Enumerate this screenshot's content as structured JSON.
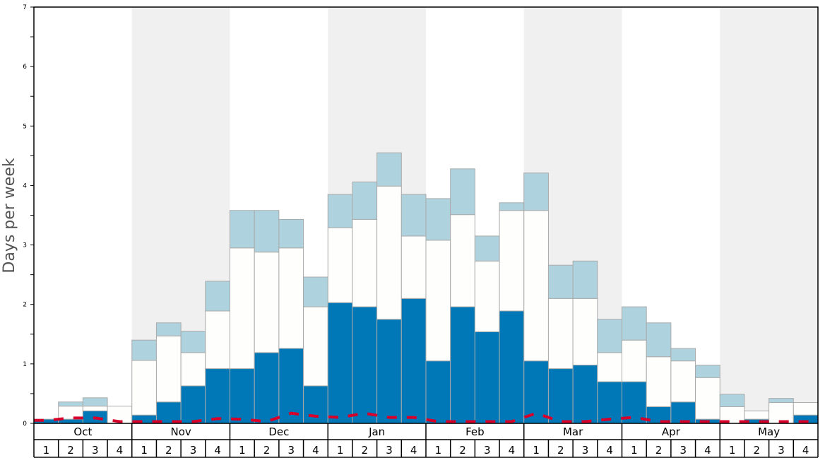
{
  "chart_data": {
    "type": "bar",
    "stacked": true,
    "ylabel": "Days per week",
    "xlabel": "",
    "ylim": [
      0,
      7
    ],
    "yticks": [
      "0",
      "1",
      "2",
      "3",
      "4",
      "5",
      "6",
      "7"
    ],
    "grid": false,
    "months": [
      "Oct",
      "Nov",
      "Dec",
      "Jan",
      "Feb",
      "Mar",
      "Apr",
      "May"
    ],
    "weeks": [
      "1",
      "2",
      "3",
      "4"
    ],
    "shaded_months": [
      "Nov",
      "Jan",
      "Mar",
      "May"
    ],
    "colors": {
      "bottom": "#0077b6",
      "middle": "#fefefc",
      "top": "#aed3df",
      "line": "#d7002a",
      "band": "#f0f0f0",
      "bar_border": "#aaaaaa"
    },
    "series": [
      {
        "values": [
          0.07,
          0.07,
          0.21,
          0,
          0.14,
          0.36,
          0.63,
          0.92,
          0.92,
          1.19,
          1.26,
          0.63,
          2.03,
          1.96,
          1.75,
          2.1,
          1.05,
          1.96,
          1.54,
          1.89,
          1.05,
          0.92,
          0.98,
          0.7,
          0.7,
          0.28,
          0.36,
          0.07,
          0,
          0.07,
          0,
          0.14
        ]
      },
      {
        "values": [
          0,
          0.22,
          0.08,
          0.29,
          0.92,
          1.11,
          0.56,
          0.97,
          2.03,
          1.69,
          1.69,
          1.33,
          1.26,
          1.47,
          2.24,
          1.05,
          2.03,
          1.55,
          1.19,
          1.69,
          2.53,
          1.18,
          1.12,
          0.49,
          0.7,
          0.84,
          0.69,
          0.7,
          0.28,
          0.14,
          0.35,
          0.21
        ]
      },
      {
        "values": [
          0,
          0.07,
          0.14,
          0,
          0.34,
          0.22,
          0.36,
          0.5,
          0.63,
          0.7,
          0.48,
          0.5,
          0.56,
          0.63,
          0.56,
          0.7,
          0.7,
          0.77,
          0.42,
          0.13,
          0.63,
          0.56,
          0.63,
          0.56,
          0.56,
          0.57,
          0.21,
          0.21,
          0.21,
          0,
          0.07,
          0
        ]
      },
      {
        "type": "line",
        "style": "dashed",
        "values": [
          0.05,
          0.09,
          0.09,
          0.03,
          0.03,
          0.03,
          0.03,
          0.08,
          0.07,
          0.03,
          0.17,
          0.12,
          0.1,
          0.17,
          0.1,
          0.1,
          0.03,
          0.03,
          0.03,
          0.03,
          0.17,
          0.03,
          0.03,
          0.07,
          0.1,
          0.03,
          0.03,
          0.03,
          0.03,
          0.03,
          0.03,
          0.03
        ]
      }
    ]
  }
}
